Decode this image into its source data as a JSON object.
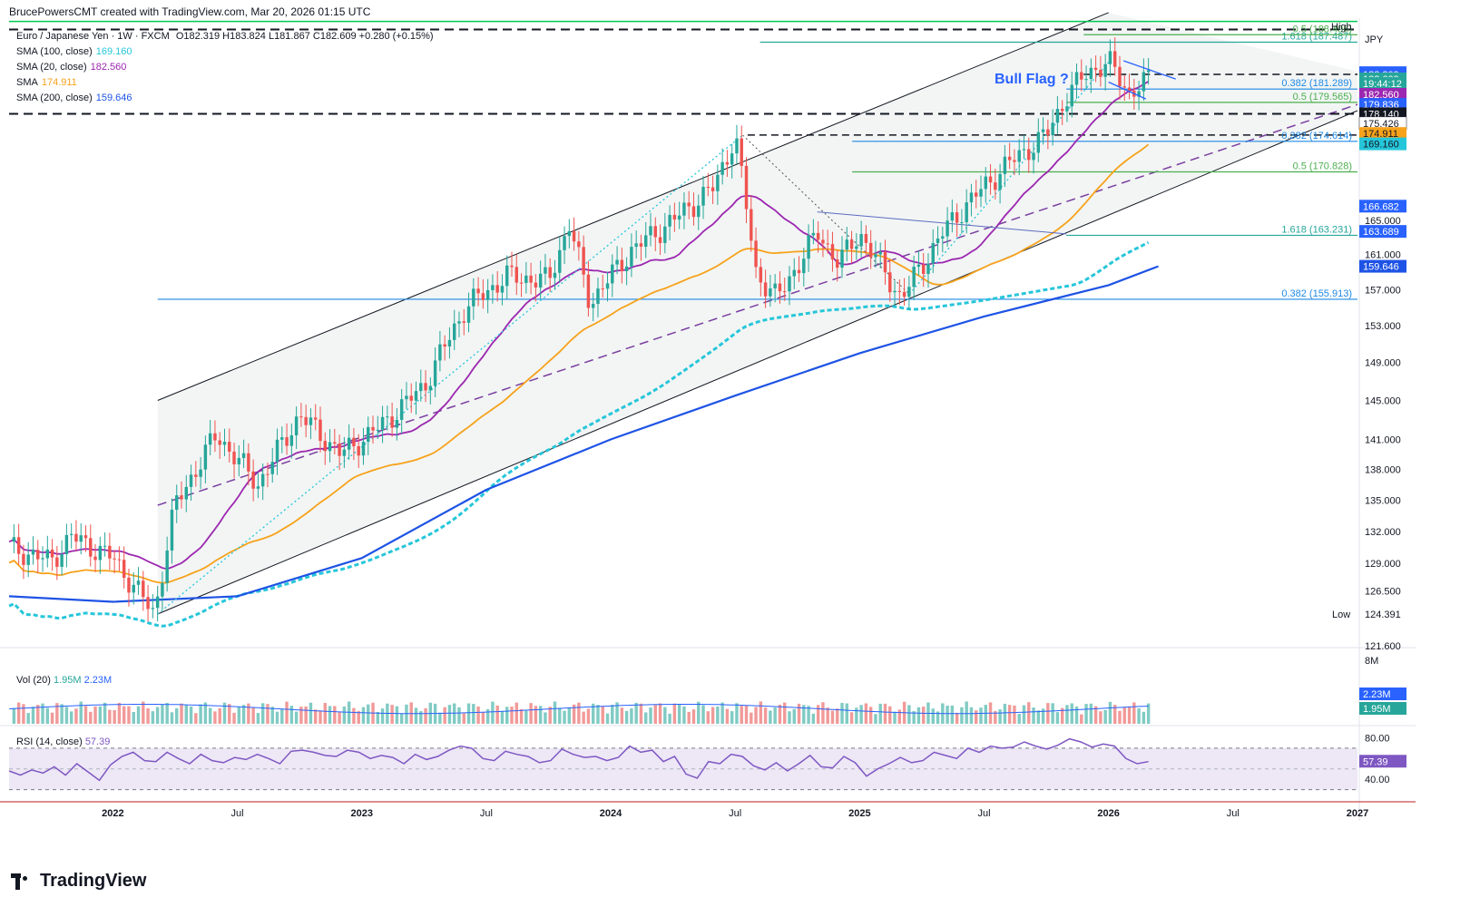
{
  "header": {
    "credit": "BrucePowersCMT created with TradingView.com, Mar 20, 2026 01:15 UTC",
    "symbol": "Euro / Japanese Yen · 1W · FXCM",
    "ohlc": "O182.319 H183.824 L181.867 C182.609 +0.280 (+0.15%)",
    "currency": "JPY",
    "high_label": "High",
    "low_label": "Low"
  },
  "indicators": [
    {
      "name": "SMA (100, close)",
      "value": "169.160",
      "color": "#26c6da"
    },
    {
      "name": "SMA (20, close)",
      "value": "182.560",
      "color": "#9c27b0"
    },
    {
      "name": "SMA",
      "value": "174.911",
      "color": "#f7a21b"
    },
    {
      "name": "SMA (200, close)",
      "value": "159.646",
      "color": "#1e53e5"
    }
  ],
  "volume_legend": {
    "name": "Vol (20)",
    "v1": "1.95M",
    "v2": "2.23M",
    "c1": "#26a69a",
    "c2": "#2962ff"
  },
  "rsi_legend": {
    "name": "RSI (14, close)",
    "value": "57.39",
    "color": "#7e57c2"
  },
  "annotation": {
    "text": "Bull Flag ?",
    "color": "#2962ff"
  },
  "colors": {
    "up": "#26a69a",
    "down": "#ef5350",
    "channel": "#131722",
    "fib_green": "#4caf50",
    "fib_blue": "#1e88e5"
  },
  "chart_data": {
    "type": "candlestick",
    "title": "Euro / Japanese Yen · 1W · FXCM",
    "ylim": [
      121.6,
      190.5
    ],
    "y_ticks": [
      "121.600",
      "124.391",
      "126.500",
      "129.000",
      "132.000",
      "135.000",
      "138.000",
      "141.000",
      "145.000",
      "149.000",
      "153.000",
      "157.000",
      "161.000",
      "165.000"
    ],
    "x_ticks": [
      "2022",
      "Jul",
      "2023",
      "Jul",
      "2024",
      "Jul",
      "2025",
      "Jul",
      "2026",
      "Jul",
      "2027"
    ],
    "price_path": [
      [
        "2021-08",
        130.5
      ],
      [
        "2021-10",
        129.2
      ],
      [
        "2021-11",
        131.5
      ],
      [
        "2022-01",
        129.5
      ],
      [
        "2022-03",
        124.4
      ],
      [
        "2022-04",
        134.5
      ],
      [
        "2022-06",
        141.5
      ],
      [
        "2022-08",
        136.5
      ],
      [
        "2022-10",
        143.5
      ],
      [
        "2022-12",
        139.5
      ],
      [
        "2023-02",
        142.5
      ],
      [
        "2023-04",
        146.5
      ],
      [
        "2023-06",
        155.0
      ],
      [
        "2023-08",
        158.5
      ],
      [
        "2023-10",
        158.0
      ],
      [
        "2023-11",
        164.5
      ],
      [
        "2023-12",
        155.5
      ],
      [
        "2024-02",
        161.5
      ],
      [
        "2024-04",
        165.0
      ],
      [
        "2024-06",
        169.0
      ],
      [
        "2024-07",
        175.4
      ],
      [
        "2024-08",
        159.0
      ],
      [
        "2024-09",
        156.0
      ],
      [
        "2024-11",
        163.5
      ],
      [
        "2024-12",
        160.0
      ],
      [
        "2025-01",
        163.5
      ],
      [
        "2025-03",
        156.0
      ],
      [
        "2025-05",
        163.5
      ],
      [
        "2025-06",
        166.5
      ],
      [
        "2025-08",
        171.5
      ],
      [
        "2025-10",
        175.4
      ],
      [
        "2025-11",
        180.5
      ],
      [
        "2025-12",
        183.5
      ],
      [
        "2026-01",
        184.8
      ],
      [
        "2026-02",
        180.8
      ],
      [
        "2026-03",
        182.6
      ]
    ],
    "sma_20_end": 182.56,
    "sma_50_end": 174.911,
    "sma_100_end": 169.16,
    "sma_200_end": 159.646,
    "fib_levels": [
      {
        "label": "1.618 (187.487)",
        "value": 187.487
      },
      {
        "label": "0.5 (179.565)",
        "value": 179.565
      },
      {
        "label": "0.382 (181.289)",
        "value": 181.289
      },
      {
        "label": "0.382 (174.614)",
        "value": 174.614
      },
      {
        "label": "0.5 (170.828)",
        "value": 170.828
      },
      {
        "label": "1.618 (163.231)",
        "value": 163.231
      },
      {
        "label": "0.382 (155.913)",
        "value": 155.913
      },
      {
        "label": "0.5 (188.496)",
        "value": 188.496
      }
    ],
    "price_badges": [
      {
        "label": "183.430",
        "value": 183.43,
        "bg": "#2962ff",
        "fg": "#ffffff"
      },
      {
        "label": "183.209",
        "value": 183.209,
        "bg": "#2962ff",
        "fg": "#ffffff"
      },
      {
        "label": "182.609",
        "value": 182.609,
        "bg": "#26a69a",
        "fg": "#ffffff"
      },
      {
        "label": "19:44:12",
        "value": 182.0,
        "bg": "#26a69a",
        "fg": "#ffffff"
      },
      {
        "label": "182.560",
        "value": 180.6,
        "bg": "#9c27b0",
        "fg": "#ffffff"
      },
      {
        "label": "179.836",
        "value": 179.3,
        "bg": "#2962ff",
        "fg": "#ffffff"
      },
      {
        "label": "178.140",
        "value": 178.1,
        "bg": "#131722",
        "fg": "#ffffff"
      },
      {
        "label": "175.426",
        "value": 176.9,
        "bg": "#ffffff",
        "fg": "#131722"
      },
      {
        "label": "174.911",
        "value": 175.6,
        "bg": "#f7a21b",
        "fg": "#131722"
      },
      {
        "label": "169.160",
        "value": 174.3,
        "bg": "#26c6da",
        "fg": "#131722"
      },
      {
        "label": "166.682",
        "value": 166.682,
        "bg": "#2962ff",
        "fg": "#ffffff"
      },
      {
        "label": "163.689",
        "value": 163.689,
        "bg": "#2962ff",
        "fg": "#ffffff"
      },
      {
        "label": "159.646",
        "value": 159.646,
        "bg": "#1e53e5",
        "fg": "#ffffff"
      }
    ],
    "volume_axis": {
      "top_label": "8M",
      "badges": [
        "2.23M",
        "1.95M"
      ]
    },
    "rsi": {
      "ylim": [
        20,
        90
      ],
      "ticks": [
        "80.00",
        "40.00"
      ],
      "upper": 70,
      "lower": 30,
      "last": 57.39,
      "path": [
        48,
        44,
        49,
        46,
        52,
        44,
        55,
        47,
        39,
        54,
        62,
        66,
        58,
        57,
        66,
        60,
        55,
        64,
        58,
        56,
        61,
        59,
        64,
        60,
        55,
        67,
        68,
        66,
        63,
        62,
        68,
        66,
        60,
        63,
        61,
        55,
        64,
        59,
        62,
        68,
        72,
        70,
        60,
        58,
        67,
        64,
        62,
        56,
        58,
        69,
        64,
        61,
        62,
        58,
        61,
        72,
        66,
        68,
        57,
        62,
        45,
        41,
        57,
        55,
        64,
        62,
        53,
        49,
        56,
        48,
        55,
        63,
        52,
        51,
        62,
        56,
        43,
        50,
        55,
        61,
        56,
        58,
        66,
        63,
        60,
        70,
        66,
        72,
        70,
        71,
        76,
        72,
        69,
        73,
        79,
        76,
        71,
        74,
        72,
        60,
        55,
        57
      ]
    }
  }
}
